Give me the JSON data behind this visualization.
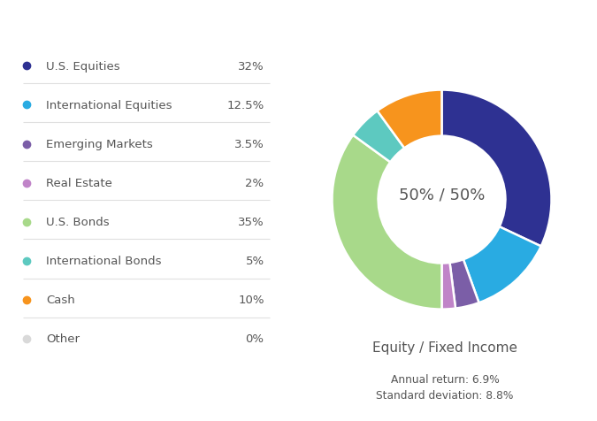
{
  "legend_items": [
    {
      "label": "U.S. Equities",
      "value": "32%",
      "color": "#2e3192"
    },
    {
      "label": "International Equities",
      "value": "12.5%",
      "color": "#29abe2"
    },
    {
      "label": "Emerging Markets",
      "value": "3.5%",
      "color": "#7b5ea7"
    },
    {
      "label": "Real Estate",
      "value": "2%",
      "color": "#c084c8"
    },
    {
      "label": "U.S. Bonds",
      "value": "35%",
      "color": "#a8d98a"
    },
    {
      "label": "International Bonds",
      "value": "5%",
      "color": "#5dc9c0"
    },
    {
      "label": "Cash",
      "value": "10%",
      "color": "#f7941d"
    },
    {
      "label": "Other",
      "value": "0%",
      "color": "#d9d9d9"
    }
  ],
  "pie_slices": [
    {
      "label": "U.S. Equities",
      "value": 32,
      "color": "#2e3192"
    },
    {
      "label": "International Equities",
      "value": 12.5,
      "color": "#29abe2"
    },
    {
      "label": "Emerging Markets",
      "value": 3.5,
      "color": "#7b5ea7"
    },
    {
      "label": "Real Estate",
      "value": 2,
      "color": "#c084c8"
    },
    {
      "label": "U.S. Bonds",
      "value": 35,
      "color": "#a8d98a"
    },
    {
      "label": "International Bonds",
      "value": 5,
      "color": "#5dc9c0"
    },
    {
      "label": "Cash",
      "value": 10,
      "color": "#f7941d"
    },
    {
      "label": "Other",
      "value": 0,
      "color": "#d9d9d9"
    }
  ],
  "donut_center_text": "50% / 50%",
  "donut_subtitle": "Equity / Fixed Income",
  "annual_return_text": "Annual return: 6.9%",
  "std_dev_text": "Standard deviation: 8.8%",
  "background_color": "#ffffff",
  "text_color": "#555555",
  "legend_divider_color": "#e0e0e0"
}
